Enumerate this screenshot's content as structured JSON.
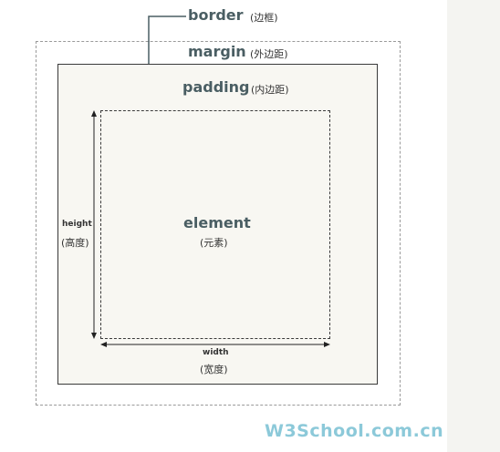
{
  "labels": {
    "border": "border",
    "border_cn": "(边框)",
    "margin": "margin",
    "margin_cn": "(外边距)",
    "padding": "padding",
    "padding_cn": "(内边距)",
    "element": "element",
    "element_cn": "(元素)",
    "height": "height",
    "height_cn": "(高度)",
    "width": "width",
    "width_cn": "(宽度)"
  },
  "watermark": "W3School.com.cn",
  "colors": {
    "term_text": "#4a5e63",
    "border_box_fill": "#f8f7f2",
    "watermark": "#8cc9d9",
    "side_strip": "#f4f4f1"
  }
}
